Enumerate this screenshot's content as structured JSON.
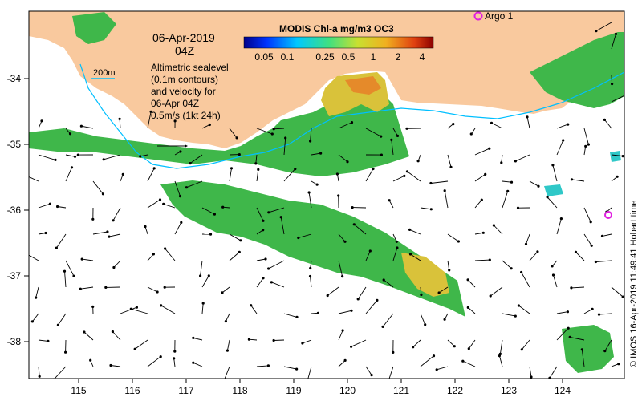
{
  "map": {
    "date_title": "06-Apr-2019",
    "time_title": "04Z",
    "isobath_label": "200m",
    "description_lines": [
      "Altimetric sealevel",
      "(0.1m contours)",
      "and velocity for",
      "06-Apr 04Z",
      "0.5m/s (1kt 24h)"
    ],
    "colorbar_title": "MODIS Chl-a mg/m3 OC3",
    "colorbar_ticks": [
      "0.05",
      "0.1",
      "0.25",
      "0.5",
      "1",
      "2",
      "4"
    ],
    "argo_label": "Argo 1",
    "credit": "© IMOS 16-Apr-2019 11:49:41 Hobart time",
    "x_ticks": [
      "115",
      "116",
      "117",
      "118",
      "119",
      "120",
      "121",
      "122",
      "123",
      "124"
    ],
    "y_ticks": [
      "-34",
      "-35",
      "-36",
      "-37",
      "-38"
    ],
    "colors": {
      "land": "#f9c99e",
      "isobath": "#00bfff",
      "argo": "#e020e0",
      "chl_green": "#3fb74a",
      "chl_yellow": "#d9c23a",
      "chl_orange": "#e58a2a",
      "chl_cyan": "#2fc8c8"
    }
  }
}
